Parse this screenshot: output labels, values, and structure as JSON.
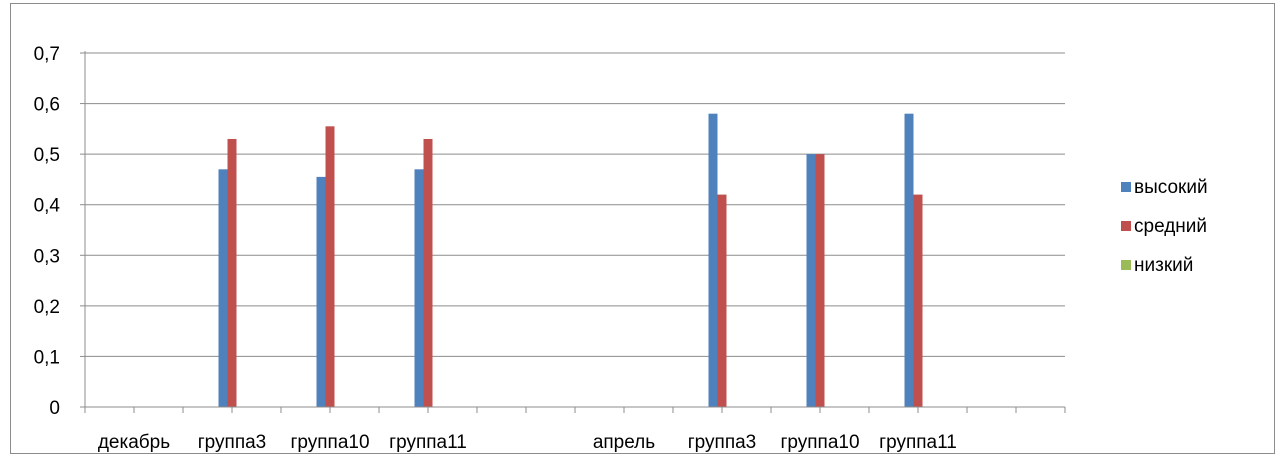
{
  "chart_data": {
    "type": "bar",
    "categories": [
      "декабрь",
      "группа3",
      "группа10",
      "группа11",
      "",
      "апрель",
      "группа3",
      "группа10",
      "группа11",
      ""
    ],
    "series": [
      {
        "name": "высокий",
        "color": "#4F81BD",
        "values": [
          null,
          0.47,
          0.455,
          0.47,
          null,
          null,
          0.58,
          0.5,
          0.58,
          null
        ]
      },
      {
        "name": "средний",
        "color": "#C0504D",
        "values": [
          null,
          0.53,
          0.555,
          0.53,
          null,
          null,
          0.42,
          0.5,
          0.42,
          null
        ]
      },
      {
        "name": "низкий",
        "color": "#9BBB59",
        "values": [
          null,
          null,
          null,
          null,
          null,
          null,
          null,
          null,
          null,
          null
        ]
      }
    ],
    "y_ticks": [
      "0",
      "0,1",
      "0,2",
      "0,3",
      "0,4",
      "0,5",
      "0,6",
      "0,7"
    ],
    "ylim": [
      0,
      0.7
    ],
    "grid": true,
    "legend_position": "right"
  }
}
